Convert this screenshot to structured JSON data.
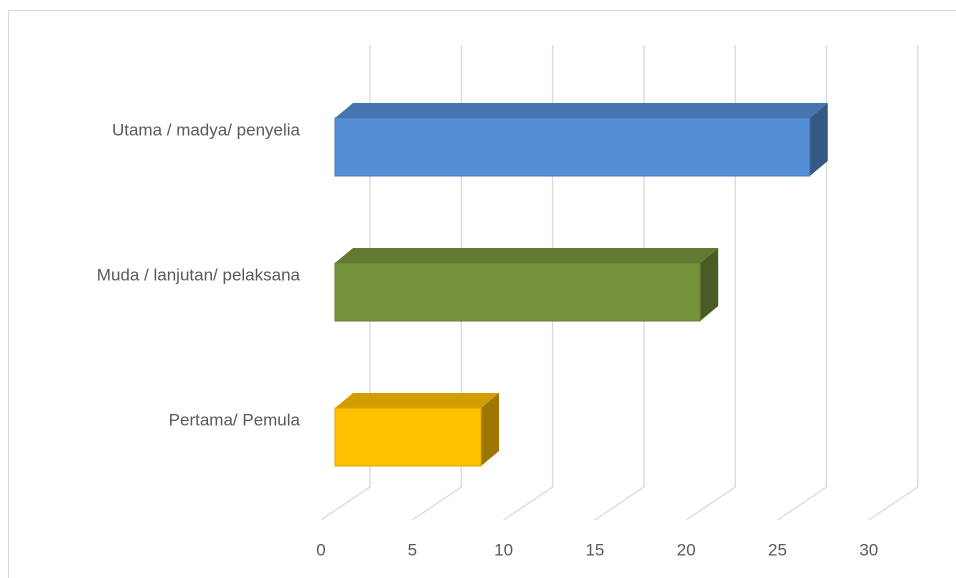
{
  "chart_data": {
    "type": "bar3d",
    "orientation": "horizontal",
    "categories": [
      "Utama / madya/ penyelia",
      "Muda / lanjutan/ pelaksana",
      "Pertama/ Pemula"
    ],
    "values": [
      26,
      20,
      8
    ],
    "colors": [
      "#558ed5",
      "#77933c",
      "#ffc000"
    ],
    "xlim": [
      0,
      30
    ],
    "xticks": [
      0,
      5,
      10,
      15,
      20,
      25,
      30
    ],
    "grid": true
  }
}
